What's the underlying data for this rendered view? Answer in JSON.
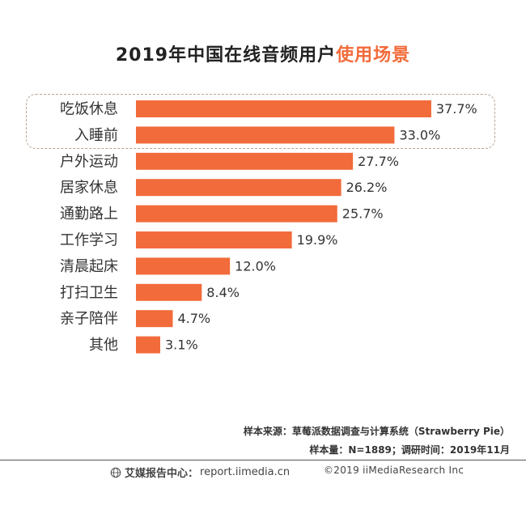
{
  "title": {
    "main": "2019年中国在线音频用户",
    "highlight": "使用场景"
  },
  "colors": {
    "bar": "#f26b3a",
    "accent": "#f26b3a",
    "highlight_border": "#b9a594"
  },
  "chart_data": {
    "type": "bar",
    "orientation": "horizontal",
    "title": "2019年中国在线音频用户使用场景",
    "categories": [
      "吃饭休息",
      "入睡前",
      "户外运动",
      "居家休息",
      "通勤路上",
      "工作学习",
      "清晨起床",
      "打扫卫生",
      "亲子陪伴",
      "其他"
    ],
    "values": [
      37.7,
      33.0,
      27.7,
      26.2,
      25.7,
      19.9,
      12.0,
      8.4,
      4.7,
      3.1
    ],
    "labels": [
      "37.7%",
      "33.0%",
      "27.7%",
      "26.2%",
      "25.7%",
      "19.9%",
      "12.0%",
      "8.4%",
      "4.7%",
      "3.1%"
    ],
    "unit": "%",
    "xlim": [
      0,
      50
    ],
    "highlighted_categories": [
      "吃饭休息",
      "入睡前"
    ],
    "grid": false
  },
  "notes": {
    "source": "样本来源：草莓派数据调查与计算系统（Strawberry Pie）",
    "sample": "样本量：N=1889；调研时间：2019年11月"
  },
  "footer": {
    "brand": "艾媒报告中心：",
    "url": "report.iimedia.cn",
    "copyright": "©2019  iiMediaResearch  Inc",
    "icon": "globe-icon"
  }
}
